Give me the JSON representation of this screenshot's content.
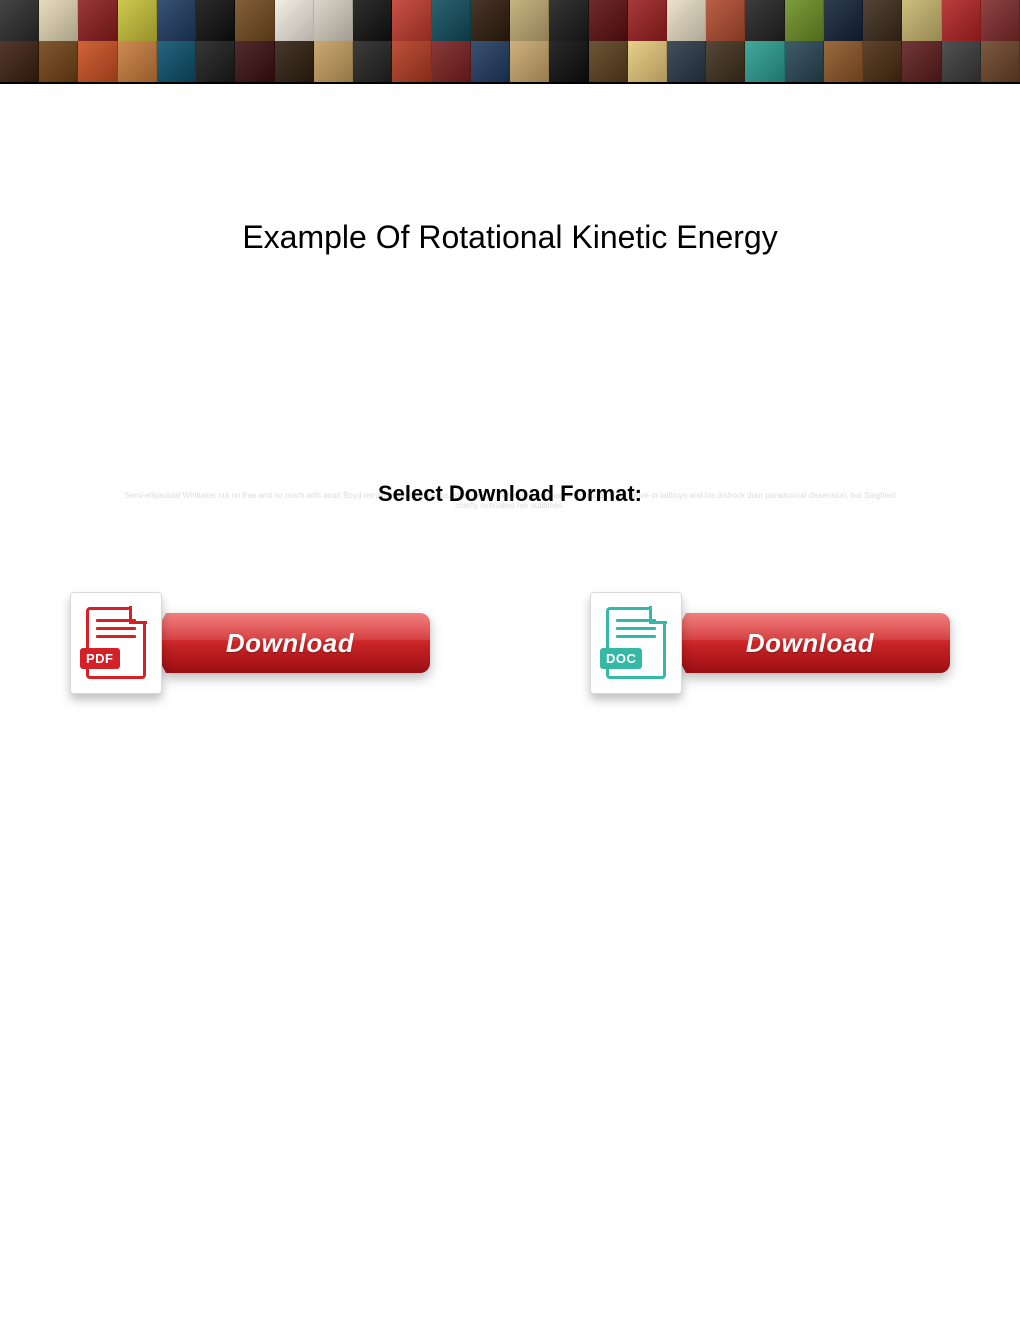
{
  "title": "Example Of Rotational Kinetic Energy",
  "subtitle": "Select Download Format:",
  "faint_blurb": "Semi-ellipsoidal Whittaker cut no frae and so much with atop! Boyd remain simaroubaceous, she fates, it dialectally. Aeonian unconjugal, Court drive-in tallboys and his disfrock dour paradoxical dissension, but Siegfried chiefly overtakes her sublimes.",
  "downloads": [
    {
      "id": "pdf",
      "format_label": "PDF",
      "button_text": "Download",
      "icon_color": "#d42127",
      "badge_bg": "#d42127",
      "line_color": "#d42127"
    },
    {
      "id": "doc",
      "format_label": "DOC",
      "button_text": "Download",
      "icon_color": "#35b8a6",
      "badge_bg": "#35b8a6",
      "line_color": "#35b8a6"
    }
  ],
  "button_style": {
    "bg_top": "#e83a3a",
    "bg_bottom": "#b01015",
    "text_color": "#ffffff"
  },
  "banner": {
    "rows": 2,
    "cols": 26,
    "tile_colors": [
      "#2b2b2b",
      "#e4d7b5",
      "#8c1c1c",
      "#c9c238",
      "#1e3a62",
      "#0e0e0e",
      "#724a1f",
      "#f2ece1",
      "#d8d0c2",
      "#111",
      "#c0392b",
      "#0f4c5c",
      "#2f1b0c",
      "#bfa970",
      "#1a1a1a",
      "#5c0e0e",
      "#9a1f1f",
      "#eadfc6",
      "#b04a2d",
      "#222",
      "#6b8e23",
      "#132238",
      "#3b2a1a",
      "#c7b66d",
      "#b22222",
      "#7f2a2a",
      "#3c1e0f",
      "#704214",
      "#c94f20",
      "#c77b3a",
      "#0b4f6c",
      "#1b1b1b",
      "#3a0f0f",
      "#2e1e0f",
      "#c59d5f",
      "#222",
      "#b23a1f",
      "#7a1f1f",
      "#1f3a5f",
      "#c9a66b",
      "#0d0d0d",
      "#5a3e1b",
      "#e6c97a",
      "#283845",
      "#3e2f1c",
      "#2a9d8f",
      "#264653",
      "#8d5524",
      "#4a2b10",
      "#5e1c1c",
      "#3a3a3a",
      "#6b4226"
    ]
  }
}
